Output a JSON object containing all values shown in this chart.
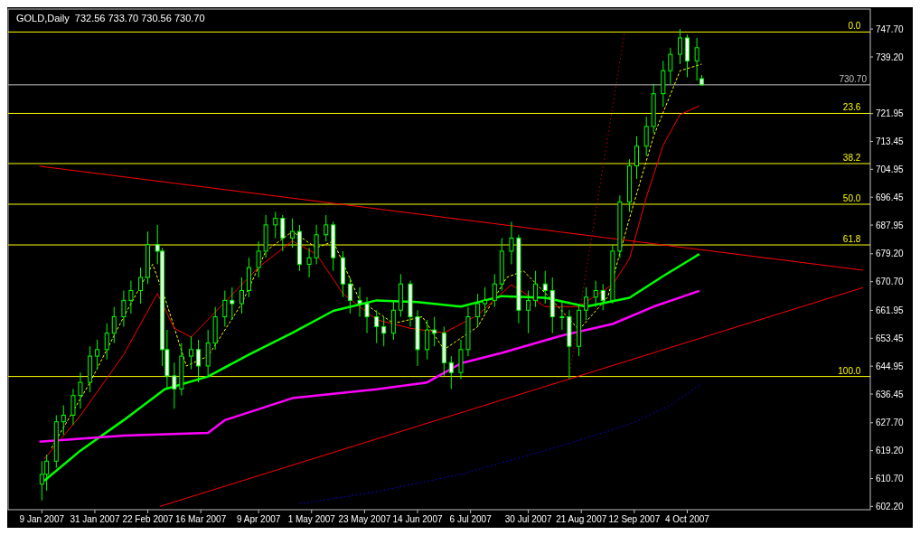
{
  "chart_data": {
    "type": "candlestick",
    "title": "GOLD,Daily  732.56 733.70 730.56 730.70",
    "x": [
      "2007-01-09",
      "2007-01-11",
      "2007-01-15",
      "2007-01-18",
      "2007-01-22",
      "2007-01-25",
      "2007-01-29",
      "2007-02-01",
      "2007-02-05",
      "2007-02-08",
      "2007-02-12",
      "2007-02-15",
      "2007-02-19",
      "2007-02-22",
      "2007-02-26",
      "2007-02-28",
      "2007-03-02",
      "2007-03-05",
      "2007-03-08",
      "2007-03-12",
      "2007-03-15",
      "2007-03-19",
      "2007-03-22",
      "2007-03-26",
      "2007-03-29",
      "2007-04-02",
      "2007-04-05",
      "2007-04-09",
      "2007-04-12",
      "2007-04-16",
      "2007-04-19",
      "2007-04-23",
      "2007-04-26",
      "2007-04-30",
      "2007-05-03",
      "2007-05-07",
      "2007-05-10",
      "2007-05-14",
      "2007-05-17",
      "2007-05-21",
      "2007-05-24",
      "2007-05-28",
      "2007-05-31",
      "2007-06-04",
      "2007-06-07",
      "2007-06-11",
      "2007-06-14",
      "2007-06-18",
      "2007-06-21",
      "2007-06-25",
      "2007-06-28",
      "2007-07-02",
      "2007-07-05",
      "2007-07-09",
      "2007-07-12",
      "2007-07-16",
      "2007-07-19",
      "2007-07-23",
      "2007-07-26",
      "2007-07-30",
      "2007-08-02",
      "2007-08-06",
      "2007-08-09",
      "2007-08-13",
      "2007-08-16",
      "2007-08-20",
      "2007-08-23",
      "2007-08-27",
      "2007-08-30",
      "2007-09-03",
      "2007-09-06",
      "2007-09-10",
      "2007-09-13",
      "2007-09-17",
      "2007-09-20",
      "2007-09-24",
      "2007-09-27",
      "2007-10-01",
      "2007-10-04",
      "2007-10-08",
      "2007-10-10"
    ],
    "ohlc": [
      [
        609,
        616,
        604,
        612
      ],
      [
        612,
        618,
        607,
        616
      ],
      [
        616,
        630,
        614,
        628
      ],
      [
        628,
        633,
        624,
        630
      ],
      [
        630,
        638,
        627,
        636
      ],
      [
        636,
        643,
        632,
        640
      ],
      [
        640,
        651,
        637,
        648
      ],
      [
        648,
        653,
        644,
        650
      ],
      [
        650,
        658,
        647,
        655
      ],
      [
        655,
        663,
        652,
        660
      ],
      [
        660,
        668,
        657,
        665
      ],
      [
        665,
        671,
        661,
        668
      ],
      [
        668,
        675,
        664,
        672
      ],
      [
        672,
        686,
        670,
        682
      ],
      [
        682,
        688,
        676,
        680
      ],
      [
        680,
        681,
        645,
        650
      ],
      [
        650,
        656,
        638,
        642
      ],
      [
        642,
        646,
        632,
        638
      ],
      [
        638,
        652,
        636,
        648
      ],
      [
        648,
        654,
        644,
        650
      ],
      [
        650,
        653,
        640,
        645
      ],
      [
        645,
        656,
        642,
        652
      ],
      [
        652,
        663,
        650,
        660
      ],
      [
        660,
        668,
        657,
        665
      ],
      [
        665,
        669,
        659,
        664
      ],
      [
        664,
        672,
        661,
        668
      ],
      [
        668,
        678,
        666,
        675
      ],
      [
        675,
        683,
        672,
        680
      ],
      [
        680,
        691,
        678,
        688
      ],
      [
        688,
        692,
        684,
        690
      ],
      [
        690,
        691,
        680,
        684
      ],
      [
        684,
        690,
        681,
        686
      ],
      [
        686,
        688,
        674,
        676
      ],
      [
        676,
        681,
        672,
        678
      ],
      [
        678,
        688,
        676,
        685
      ],
      [
        685,
        691,
        683,
        688
      ],
      [
        688,
        689,
        674,
        678
      ],
      [
        678,
        680,
        666,
        670
      ],
      [
        670,
        672,
        661,
        665
      ],
      [
        665,
        669,
        660,
        664
      ],
      [
        664,
        666,
        655,
        660
      ],
      [
        660,
        662,
        652,
        657
      ],
      [
        657,
        660,
        651,
        655
      ],
      [
        655,
        665,
        653,
        662
      ],
      [
        662,
        673,
        660,
        670
      ],
      [
        670,
        671,
        657,
        660
      ],
      [
        660,
        662,
        645,
        650
      ],
      [
        650,
        659,
        647,
        656
      ],
      [
        656,
        660,
        651,
        655
      ],
      [
        655,
        657,
        642,
        646
      ],
      [
        646,
        648,
        638,
        643
      ],
      [
        643,
        653,
        641,
        650
      ],
      [
        650,
        663,
        648,
        660
      ],
      [
        660,
        667,
        657,
        664
      ],
      [
        664,
        669,
        661,
        665
      ],
      [
        665,
        673,
        663,
        670
      ],
      [
        670,
        684,
        668,
        680
      ],
      [
        680,
        689,
        676,
        684
      ],
      [
        684,
        685,
        658,
        662
      ],
      [
        662,
        668,
        655,
        665
      ],
      [
        665,
        674,
        663,
        670
      ],
      [
        670,
        674,
        664,
        668
      ],
      [
        668,
        672,
        655,
        660
      ],
      [
        660,
        665,
        656,
        660
      ],
      [
        660,
        662,
        641,
        651
      ],
      [
        651,
        664,
        648,
        662
      ],
      [
        662,
        669,
        659,
        666
      ],
      [
        666,
        671,
        663,
        668
      ],
      [
        668,
        670,
        662,
        665
      ],
      [
        665,
        682,
        664,
        680
      ],
      [
        680,
        697,
        678,
        695
      ],
      [
        695,
        708,
        692,
        706
      ],
      [
        706,
        715,
        702,
        712
      ],
      [
        712,
        721,
        709,
        718
      ],
      [
        718,
        731,
        716,
        728
      ],
      [
        728,
        738,
        724,
        735
      ],
      [
        735,
        742,
        731,
        740
      ],
      [
        740,
        747.7,
        737,
        745
      ],
      [
        745,
        746,
        733,
        738
      ],
      [
        738,
        745,
        732,
        742
      ],
      [
        732.56,
        733.7,
        730.56,
        730.7
      ]
    ],
    "color": "#00ff00",
    "series": [
      {
        "type": "line",
        "color": "#ffff00",
        "line_style": "dashed",
        "x": [
          "2007-01-13",
          "2007-01-29",
          "2007-02-12",
          "2007-02-24",
          "2007-03-01",
          "2007-03-10",
          "2007-03-19",
          "2007-04-02",
          "2007-04-12",
          "2007-04-23",
          "2007-05-03",
          "2007-05-10",
          "2007-05-21",
          "2007-06-04",
          "2007-06-16",
          "2007-06-25",
          "2007-07-09",
          "2007-07-21",
          "2007-07-28",
          "2007-08-09",
          "2007-08-20",
          "2007-09-01",
          "2007-09-10",
          "2007-09-20",
          "2007-10-01",
          "2007-10-10"
        ],
        "values": [
          620,
          640,
          660,
          676,
          666,
          645,
          648,
          664,
          680,
          686,
          681,
          683,
          665,
          658,
          660,
          650,
          657,
          672,
          674,
          665,
          656,
          666,
          690,
          715,
          735,
          737
        ]
      },
      {
        "type": "line",
        "color": "#ff0000",
        "line_style": "solid",
        "x": [
          "2007-01-10",
          "2007-01-25",
          "2007-02-12",
          "2007-02-26",
          "2007-03-05",
          "2007-03-12",
          "2007-03-26",
          "2007-04-09",
          "2007-04-23",
          "2007-05-03",
          "2007-05-14",
          "2007-05-28",
          "2007-06-11",
          "2007-06-25",
          "2007-07-09",
          "2007-07-23",
          "2007-08-06",
          "2007-08-20",
          "2007-09-03",
          "2007-09-10",
          "2007-09-17",
          "2007-09-24",
          "2007-10-01",
          "2007-10-09"
        ],
        "values": [
          616.6,
          629.9,
          648.5,
          667.1,
          656.5,
          653.8,
          664.5,
          675.1,
          683.1,
          679.1,
          667.1,
          659.1,
          656.5,
          655.1,
          660.5,
          669.8,
          663.1,
          663.1,
          669.8,
          677.7,
          696.4,
          712.3,
          721.6,
          724.3
        ]
      },
      {
        "type": "line",
        "color": "#00ff00",
        "line_style": "solid",
        "x": [
          "2007-01-10",
          "2007-01-25",
          "2007-02-12",
          "2007-03-01",
          "2007-03-19",
          "2007-04-05",
          "2007-04-23",
          "2007-05-10",
          "2007-05-28",
          "2007-06-14",
          "2007-07-02",
          "2007-07-19",
          "2007-08-06",
          "2007-08-23",
          "2007-09-10",
          "2007-09-24",
          "2007-10-09"
        ],
        "values": [
          610,
          619.2,
          628.5,
          637.9,
          641.8,
          648.5,
          655.1,
          661.8,
          665,
          664.5,
          663.1,
          666.3,
          665.8,
          663.1,
          665.8,
          672.4,
          679.1
        ]
      },
      {
        "type": "line",
        "color": "#ff00ff",
        "line_style": "solid",
        "x": [
          "2007-01-08",
          "2007-02-12",
          "2007-03-19",
          "2007-03-26",
          "2007-04-23",
          "2007-05-28",
          "2007-06-18",
          "2007-07-02",
          "2007-07-19",
          "2007-08-13",
          "2007-09-03",
          "2007-09-20",
          "2007-10-09"
        ],
        "values": [
          621.9,
          623.8,
          624.6,
          628.5,
          635.2,
          637.9,
          640,
          645.8,
          649,
          654.3,
          657.8,
          663.1,
          667.9
        ]
      },
      {
        "type": "line",
        "color": "#0000ff",
        "line_style": "dotted",
        "x": [
          "2007-04-26",
          "2007-05-28",
          "2007-07-02",
          "2007-08-06",
          "2007-09-10",
          "2007-09-27",
          "2007-10-09"
        ],
        "values": [
          603,
          606.7,
          612,
          619.2,
          627.2,
          633,
          639.2
        ]
      },
      {
        "type": "line",
        "color": "#ff0000",
        "line_style": "solid",
        "x": [
          "2007-01-08",
          "2007-12-16"
        ],
        "values": [
          705.9,
          674.2
        ]
      },
      {
        "type": "line",
        "color": "#ff0000",
        "line_style": "solid",
        "x": [
          "2007-02-27",
          "2007-12-16"
        ],
        "values": [
          602.2,
          668.9
        ]
      },
      {
        "type": "line",
        "color": "#c00000",
        "line_style": "dotted",
        "x": [
          "2007-08-16",
          "2007-09-08"
        ],
        "values": [
          641.8,
          746.8
        ]
      }
    ],
    "xlim": [
      "2006-12-26",
      "2007-12-19"
    ],
    "xticks": [
      {
        "value": "2007-01-09",
        "label": "9 Jan 2007"
      },
      {
        "value": "2007-01-31",
        "label": "31 Jan 2007"
      },
      {
        "value": "2007-02-22",
        "label": "22 Feb 2007"
      },
      {
        "value": "2007-03-16",
        "label": "16 Mar 2007"
      },
      {
        "value": "2007-04-09",
        "label": "9 Apr 2007"
      },
      {
        "value": "2007-05-01",
        "label": "1 May 2007"
      },
      {
        "value": "2007-05-23",
        "label": "23 May 2007"
      },
      {
        "value": "2007-06-14",
        "label": "14 Jun 2007"
      },
      {
        "value": "2007-07-06",
        "label": "6 Jul 2007"
      },
      {
        "value": "2007-07-30",
        "label": "30 Jul 2007"
      },
      {
        "value": "2007-08-21",
        "label": "21 Aug 2007"
      },
      {
        "value": "2007-09-12",
        "label": "12 Sep 2007"
      },
      {
        "value": "2007-10-04",
        "label": "4 Oct 2007"
      }
    ],
    "ylim": [
      601.2,
      753.8
    ],
    "yticks": [
      {
        "value": 747.7,
        "label": "747.70"
      },
      {
        "value": 739.2,
        "label": "739.20"
      },
      {
        "value": 721.95,
        "label": "721.95"
      },
      {
        "value": 713.45,
        "label": "713.45"
      },
      {
        "value": 704.95,
        "label": "704.95"
      },
      {
        "value": 696.45,
        "label": "696.45"
      },
      {
        "value": 687.95,
        "label": "687.95"
      },
      {
        "value": 679.2,
        "label": "679.20"
      },
      {
        "value": 670.7,
        "label": "670.70"
      },
      {
        "value": 661.95,
        "label": "661.95"
      },
      {
        "value": 653.45,
        "label": "653.45"
      },
      {
        "value": 644.95,
        "label": "644.95"
      },
      {
        "value": 636.45,
        "label": "636.45"
      },
      {
        "value": 627.7,
        "label": "627.70"
      },
      {
        "value": 619.2,
        "label": "619.20"
      },
      {
        "value": 610.7,
        "label": "610.70"
      },
      {
        "value": 602.2,
        "label": "602.20"
      }
    ],
    "ref_lines": [
      {
        "axis": "y",
        "value": 730.7,
        "label": "730.70",
        "color": "#c0c0c0"
      },
      {
        "axis": "y",
        "value": 746.8,
        "color": "#ffff00"
      },
      {
        "axis": "y",
        "value": 722,
        "color": "#ffff00"
      },
      {
        "axis": "y",
        "value": 706.7,
        "color": "#ffff00"
      },
      {
        "axis": "y",
        "value": 694.3,
        "color": "#ffff00"
      },
      {
        "axis": "y",
        "value": 681.9,
        "color": "#ffff00"
      },
      {
        "axis": "y",
        "value": 641.8,
        "color": "#ffff00"
      }
    ],
    "annotations": [
      {
        "text": "0.0",
        "x": "2007-12-15",
        "y": 746.8
      },
      {
        "text": "23.6",
        "x": "2007-12-15",
        "y": 722
      },
      {
        "text": "38.2",
        "x": "2007-12-15",
        "y": 706.7
      },
      {
        "text": "50.0",
        "x": "2007-12-15",
        "y": 694.3
      },
      {
        "text": "61.8",
        "x": "2007-12-15",
        "y": 681.9
      },
      {
        "text": "100.0",
        "x": "2007-12-15",
        "y": 641.8
      }
    ]
  }
}
